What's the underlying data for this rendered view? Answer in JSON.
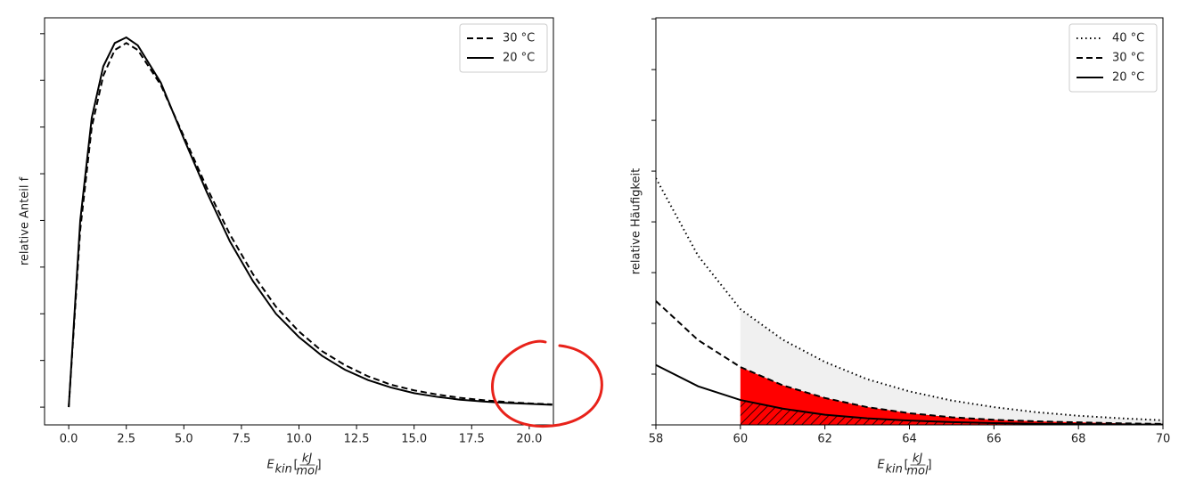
{
  "chart_data": [
    {
      "type": "line",
      "ylabel": "relative Anteil f",
      "xlabel": {
        "main": "E",
        "sub": "kin",
        "open": "[",
        "num": "kJ",
        "den": "mol",
        "close": "]"
      },
      "x": [
        0,
        0.5,
        1,
        1.5,
        2,
        2.5,
        3,
        4,
        5,
        6,
        7,
        8,
        9,
        10,
        11,
        12,
        13,
        14,
        15,
        16,
        17,
        18,
        19,
        20,
        21
      ],
      "series": [
        {
          "name": "30 °C",
          "color": "#000000",
          "dash": "dashed",
          "values": [
            0,
            3.8,
            6.0,
            7.1,
            7.65,
            7.8,
            7.65,
            6.9,
            5.8,
            4.7,
            3.7,
            2.85,
            2.15,
            1.62,
            1.2,
            0.9,
            0.66,
            0.48,
            0.36,
            0.27,
            0.2,
            0.15,
            0.11,
            0.08,
            0.06
          ]
        },
        {
          "name": "20 °C",
          "color": "#000000",
          "dash": "solid",
          "values": [
            0,
            4.0,
            6.2,
            7.3,
            7.8,
            7.92,
            7.75,
            6.95,
            5.75,
            4.6,
            3.55,
            2.7,
            2.0,
            1.5,
            1.1,
            0.8,
            0.58,
            0.42,
            0.3,
            0.22,
            0.16,
            0.12,
            0.09,
            0.07,
            0.05
          ]
        }
      ],
      "xlim": [
        -1.05,
        21.05
      ],
      "xticks": [
        {
          "value": 0,
          "label": "0.0"
        },
        2.5,
        {
          "value": 5,
          "label": "5.0"
        },
        7.5,
        {
          "value": 10,
          "label": "10.0"
        },
        12.5,
        {
          "value": 15,
          "label": "15.0"
        },
        17.5,
        {
          "value": 20,
          "label": "20.0"
        }
      ],
      "ylim": [
        -0.38,
        8.34
      ],
      "yticks": [
        0,
        1,
        2,
        3,
        4,
        5,
        6,
        7,
        8
      ],
      "legend": "upper right"
    },
    {
      "type": "line",
      "ylabel": "relative Häufigkeit",
      "xlabel": {
        "main": "E",
        "sub": "kin",
        "open": "[",
        "num": "kJ",
        "den": "mol",
        "close": "]"
      },
      "x": [
        58,
        59,
        60,
        61,
        62,
        63,
        64,
        65,
        66,
        67,
        68,
        69,
        70
      ],
      "fill_from": 60,
      "series": [
        {
          "name": "40 °C",
          "color": "#000000",
          "dash": "dotted",
          "fill": "#f0f0f0",
          "values": [
            4.86,
            3.33,
            2.28,
            1.68,
            1.24,
            0.9,
            0.66,
            0.48,
            0.35,
            0.25,
            0.18,
            0.13,
            0.09
          ]
        },
        {
          "name": "30 °C",
          "color": "#000000",
          "dash": "dashed",
          "fill": "#ff0000",
          "values": [
            2.44,
            1.67,
            1.14,
            0.78,
            0.53,
            0.35,
            0.23,
            0.15,
            0.1,
            0.07,
            0.05,
            0.03,
            0.02
          ]
        },
        {
          "name": "20 °C",
          "color": "#000000",
          "dash": "solid",
          "fill": "#ff0000",
          "hatch": "////",
          "values": [
            1.18,
            0.76,
            0.49,
            0.32,
            0.2,
            0.13,
            0.085,
            0.055,
            0.035,
            0.023,
            0.015,
            0.01,
            0.006
          ]
        }
      ],
      "xlim": [
        58,
        70
      ],
      "xticks": [
        58,
        60,
        62,
        64,
        66,
        68,
        70
      ],
      "ylim": [
        0,
        8.02
      ],
      "yticks": [
        0,
        1,
        2,
        3,
        4,
        5,
        6,
        7,
        8
      ],
      "legend": "upper right"
    }
  ]
}
